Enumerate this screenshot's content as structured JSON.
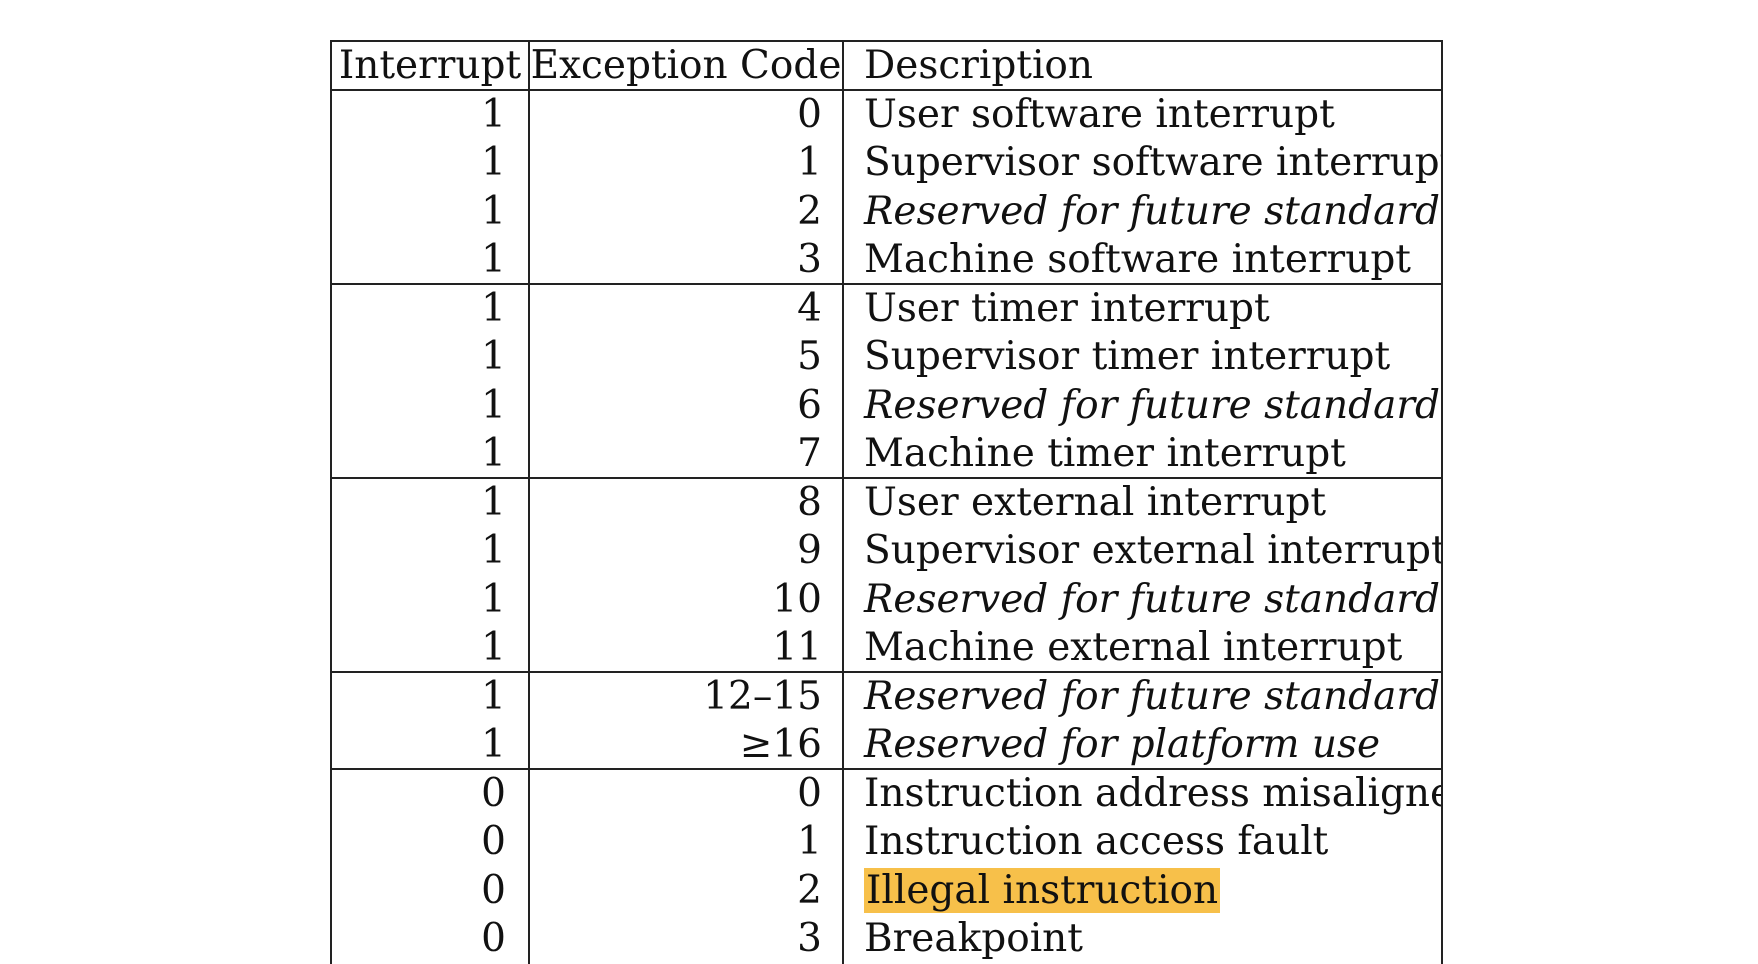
{
  "table": {
    "headers": {
      "interrupt": "Interrupt",
      "exception_code": "Exception Code",
      "description": "Description"
    },
    "rows": [
      {
        "interrupt": "1",
        "code": "0",
        "description": "User software interrupt"
      },
      {
        "interrupt": "1",
        "code": "1",
        "description": "Supervisor software interrupt"
      },
      {
        "interrupt": "1",
        "code": "2",
        "description": "Reserved for future standard use"
      },
      {
        "interrupt": "1",
        "code": "3",
        "description": "Machine software interrupt"
      },
      {
        "interrupt": "1",
        "code": "4",
        "description": "User timer interrupt"
      },
      {
        "interrupt": "1",
        "code": "5",
        "description": "Supervisor timer interrupt"
      },
      {
        "interrupt": "1",
        "code": "6",
        "description": "Reserved for future standard use"
      },
      {
        "interrupt": "1",
        "code": "7",
        "description": "Machine timer interrupt"
      },
      {
        "interrupt": "1",
        "code": "8",
        "description": "User external interrupt"
      },
      {
        "interrupt": "1",
        "code": "9",
        "description": "Supervisor external interrupt"
      },
      {
        "interrupt": "1",
        "code": "10",
        "description": "Reserved for future standard use"
      },
      {
        "interrupt": "1",
        "code": "11",
        "description": "Machine external interrupt"
      },
      {
        "interrupt": "1",
        "code": "12–15",
        "description": "Reserved for future standard use"
      },
      {
        "interrupt": "1",
        "code": "≥16",
        "description": "Reserved for platform use"
      },
      {
        "interrupt": "0",
        "code": "0",
        "description": "Instruction address misaligned"
      },
      {
        "interrupt": "0",
        "code": "1",
        "description": "Instruction access fault"
      },
      {
        "interrupt": "0",
        "code": "2",
        "description": "Illegal instruction"
      },
      {
        "interrupt": "0",
        "code": "3",
        "description": "Breakpoint"
      }
    ]
  },
  "highlight_color": "#f7c04a"
}
